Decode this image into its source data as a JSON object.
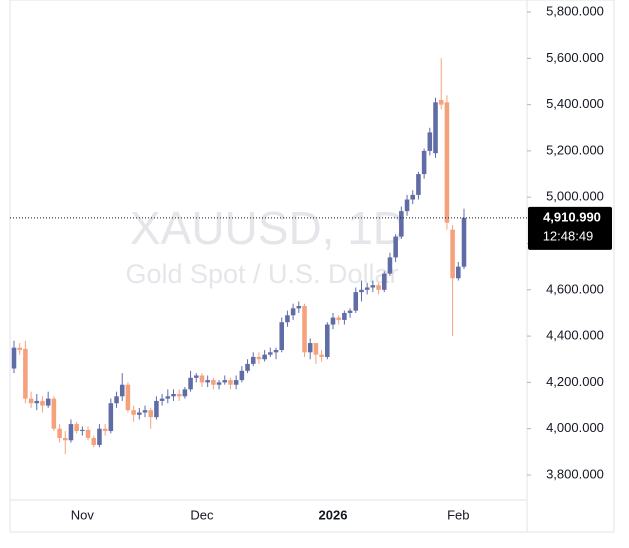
{
  "chart_data": {
    "type": "candlestick",
    "watermark": {
      "symbol": "XAUUSD, 1D",
      "description": "Gold Spot / U.S. Dollar"
    },
    "categories": [
      null,
      null,
      null,
      null,
      null,
      null,
      null,
      null,
      null,
      null,
      null,
      null,
      "Nov",
      null,
      null,
      null,
      null,
      null,
      null,
      null,
      null,
      null,
      null,
      null,
      null,
      null,
      null,
      null,
      null,
      null,
      null,
      null,
      null,
      "Dec",
      null,
      null,
      null,
      null,
      null,
      null,
      null,
      null,
      null,
      null,
      null,
      null,
      null,
      null,
      null,
      null,
      null,
      null,
      null,
      null,
      null,
      null,
      "2026",
      null,
      null,
      null,
      null,
      null,
      null,
      null,
      null,
      null,
      null,
      null,
      null,
      null,
      null,
      null,
      null,
      null,
      null,
      null,
      null,
      null,
      "Feb",
      null
    ],
    "open": [
      4260,
      4350,
      4345,
      4130,
      4110,
      4120,
      4100,
      4130,
      4000,
      3960,
      3950,
      4020,
      3990,
      3995,
      3960,
      3930,
      4000,
      3990,
      4110,
      4140,
      4190,
      4080,
      4060,
      4070,
      4080,
      4050,
      4120,
      4130,
      4140,
      4150,
      4140,
      4170,
      4220,
      4230,
      4200,
      4210,
      4190,
      4200,
      4210,
      4190,
      4210,
      4250,
      4280,
      4310,
      4300,
      4320,
      4330,
      4340,
      4460,
      4490,
      4520,
      4530,
      4330,
      4370,
      4320,
      4310,
      4450,
      4480,
      4470,
      4500,
      4510,
      4590,
      4600,
      4610,
      4620,
      4600,
      4670,
      4740,
      4830,
      4940,
      4990,
      5010,
      5100,
      5200,
      5190,
      5420,
      5410,
      4860,
      4650,
      4700
    ],
    "high": [
      4380,
      4370,
      4380,
      4160,
      4150,
      4140,
      4160,
      4140,
      4020,
      3990,
      4040,
      4030,
      4010,
      4010,
      3970,
      4020,
      4020,
      4130,
      4160,
      4240,
      4200,
      4100,
      4090,
      4100,
      4090,
      4140,
      4150,
      4170,
      4170,
      4170,
      4180,
      4250,
      4240,
      4240,
      4230,
      4220,
      4210,
      4230,
      4220,
      4230,
      4270,
      4300,
      4330,
      4330,
      4340,
      4350,
      4350,
      4480,
      4510,
      4540,
      4550,
      4540,
      4390,
      4370,
      4340,
      4460,
      4500,
      4490,
      4510,
      4520,
      4610,
      4640,
      4630,
      4640,
      4630,
      4680,
      4760,
      4840,
      4960,
      5010,
      5030,
      5110,
      5210,
      5300,
      5430,
      5600,
      5440,
      4880,
      4720,
      4950
    ],
    "low": [
      4240,
      4320,
      4110,
      4090,
      4080,
      4070,
      4090,
      3990,
      3940,
      3890,
      3940,
      3980,
      3970,
      3950,
      3920,
      3920,
      3970,
      3980,
      4090,
      4120,
      4070,
      4030,
      4040,
      4050,
      4000,
      4040,
      4100,
      4110,
      4120,
      4120,
      4130,
      4160,
      4200,
      4180,
      4180,
      4170,
      4170,
      4190,
      4170,
      4170,
      4200,
      4240,
      4270,
      4280,
      4290,
      4310,
      4300,
      4330,
      4440,
      4470,
      4500,
      4310,
      4300,
      4280,
      4290,
      4300,
      4430,
      4450,
      4450,
      4480,
      4500,
      4550,
      4580,
      4590,
      4580,
      4590,
      4660,
      4720,
      4820,
      4920,
      4970,
      4990,
      5080,
      5180,
      5170,
      5380,
      4860,
      4400,
      4640,
      4690
    ],
    "close": [
      4350,
      4340,
      4130,
      4110,
      4120,
      4100,
      4130,
      4000,
      3960,
      3950,
      4020,
      3990,
      3995,
      3960,
      3930,
      4000,
      3990,
      4110,
      4140,
      4190,
      4080,
      4060,
      4070,
      4080,
      4050,
      4120,
      4130,
      4140,
      4150,
      4140,
      4170,
      4220,
      4230,
      4200,
      4210,
      4190,
      4200,
      4210,
      4190,
      4210,
      4250,
      4280,
      4310,
      4300,
      4320,
      4330,
      4340,
      4460,
      4490,
      4520,
      4530,
      4330,
      4370,
      4320,
      4310,
      4450,
      4480,
      4470,
      4500,
      4510,
      4590,
      4600,
      4610,
      4620,
      4600,
      4670,
      4740,
      4830,
      4940,
      4990,
      5010,
      5100,
      5200,
      5280,
      5410,
      5400,
      4890,
      4650,
      4700,
      4910.99
    ],
    "up_color": "#5f6ca6",
    "down_color": "#f5a27c",
    "ylim": [
      3692,
      5852
    ],
    "yticks": [
      {
        "value": 3800,
        "label": "3,800.000"
      },
      {
        "value": 4000,
        "label": "4,000.000"
      },
      {
        "value": 4200,
        "label": "4,200.000"
      },
      {
        "value": 4400,
        "label": "4,400.000"
      },
      {
        "value": 4600,
        "label": "4,600.000"
      },
      {
        "value": 4800,
        "label": "4,800.000"
      },
      {
        "value": 5000,
        "label": "5,000.000"
      },
      {
        "value": 5200,
        "label": "5,200.000"
      },
      {
        "value": 5400,
        "label": "5,400.000"
      },
      {
        "value": 5600,
        "label": "5,600.000"
      },
      {
        "value": 5800,
        "label": "5,800.000"
      }
    ],
    "price_line": {
      "value": 4910.99,
      "label": "4,910.990",
      "timer": "12:48:49"
    }
  }
}
